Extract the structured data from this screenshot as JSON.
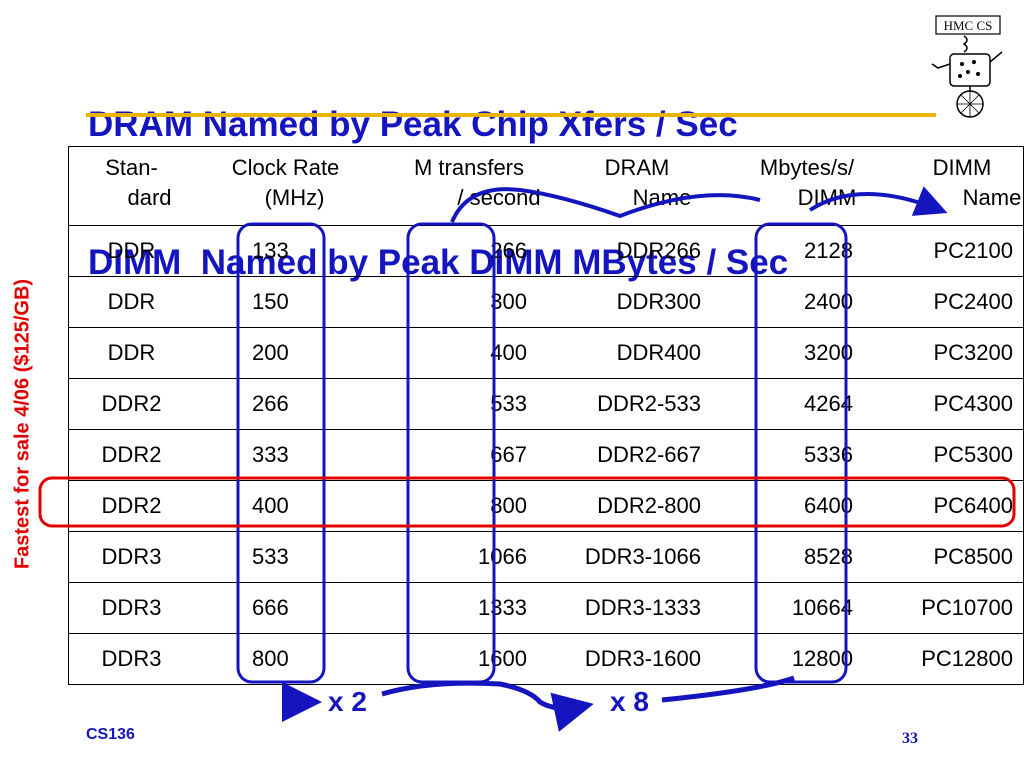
{
  "title": {
    "line1": "DRAM Named by Peak Chip Xfers / Sec",
    "line2": "DIMM  Named by Peak DIMM MBytes / Sec"
  },
  "logo": {
    "text": "HMC CS",
    "icon": "hmc-cs-unicycle-robot-logo"
  },
  "side_label": "Fastest for sale 4/06 ($125/GB)",
  "table": {
    "headers": [
      {
        "line1": "Stan-",
        "line2": "dard"
      },
      {
        "line1": "Clock Rate",
        "line2": "(MHz)"
      },
      {
        "line1": "M transfers",
        "line2": "/ second"
      },
      {
        "line1": "DRAM",
        "line2": "Name"
      },
      {
        "line1": "Mbytes/s/",
        "line2": "DIMM"
      },
      {
        "line1": "DIMM",
        "line2": "Name"
      }
    ],
    "rows": [
      [
        "DDR",
        "133",
        "266",
        "DDR266",
        "2128",
        "PC2100"
      ],
      [
        "DDR",
        "150",
        "300",
        "DDR300",
        "2400",
        "PC2400"
      ],
      [
        "DDR",
        "200",
        "400",
        "DDR400",
        "3200",
        "PC3200"
      ],
      [
        "DDR2",
        "266",
        "533",
        "DDR2-533",
        "4264",
        "PC4300"
      ],
      [
        "DDR2",
        "333",
        "667",
        "DDR2-667",
        "5336",
        "PC5300"
      ],
      [
        "DDR2",
        "400",
        "800",
        "DDR2-800",
        "6400",
        "PC6400"
      ],
      [
        "DDR3",
        "533",
        "1066",
        "DDR3-1066",
        "8528",
        "PC8500"
      ],
      [
        "DDR3",
        "666",
        "1333",
        "DDR3-1333",
        "10664",
        "PC10700"
      ],
      [
        "DDR3",
        "800",
        "1600",
        "DDR3-1600",
        "12800",
        "PC12800"
      ]
    ],
    "highlighted_row": 5
  },
  "annotations": {
    "x2": "x 2",
    "x8": "x 8"
  },
  "colors": {
    "accent_blue": "#1515c0",
    "highlight_red": "#e00000",
    "rule_gold": "#e8b400"
  },
  "footer": {
    "course": "CS136",
    "page": "33"
  }
}
